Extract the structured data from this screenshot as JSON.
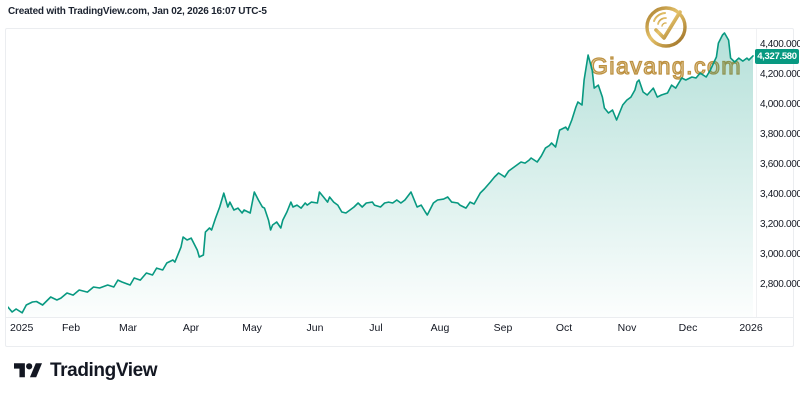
{
  "attribution": "Created with TradingView.com, Jan 02, 2026 16:07 UTC-5",
  "watermark": {
    "name": "Giavang.com",
    "gold_color": "#bd9140"
  },
  "brand": {
    "name": "TradingView"
  },
  "price_axis": {
    "ticks": [
      "4,400.000",
      "4,200.000",
      "4,000.000",
      "3,800.000",
      "3,600.000",
      "3,400.000",
      "3,200.000",
      "3,000.000",
      "2,800.000"
    ],
    "last_value": "4,327.580",
    "last_value_color": "#089981"
  },
  "time_axis": {
    "labels": [
      {
        "label": "2025",
        "date": "2025-01-01"
      },
      {
        "label": "Feb",
        "date": "2025-02-01"
      },
      {
        "label": "Mar",
        "date": "2025-03-01"
      },
      {
        "label": "Apr",
        "date": "2025-04-01"
      },
      {
        "label": "May",
        "date": "2025-05-01"
      },
      {
        "label": "Jun",
        "date": "2025-06-01"
      },
      {
        "label": "Jul",
        "date": "2025-07-01"
      },
      {
        "label": "Aug",
        "date": "2025-08-01"
      },
      {
        "label": "Sep",
        "date": "2025-09-01"
      },
      {
        "label": "Oct",
        "date": "2025-10-01"
      },
      {
        "label": "Nov",
        "date": "2025-11-01"
      },
      {
        "label": "Dec",
        "date": "2025-12-01"
      },
      {
        "label": "2026",
        "date": "2026-01-01"
      }
    ]
  },
  "chart_data": {
    "type": "area",
    "line_color": "#089981",
    "fill_color_top": "rgba(8,153,129,0.30)",
    "fill_color_bottom": "rgba(8,153,129,0.01)",
    "grid": false,
    "legend_position": "none",
    "x_range": [
      "2025-01-01",
      "2026-01-02"
    ],
    "ylim": [
      2587,
      4500
    ],
    "y_tick_values": [
      4400,
      4200,
      4000,
      3800,
      3600,
      3400,
      3200,
      3000,
      2800
    ],
    "last_value": 4327.58,
    "series": [
      {
        "name": "price",
        "points": [
          [
            "2025-01-01",
            2653
          ],
          [
            "2025-01-03",
            2620
          ],
          [
            "2025-01-05",
            2640
          ],
          [
            "2025-01-08",
            2615
          ],
          [
            "2025-01-10",
            2667
          ],
          [
            "2025-01-13",
            2687
          ],
          [
            "2025-01-15",
            2690
          ],
          [
            "2025-01-18",
            2667
          ],
          [
            "2025-01-22",
            2720
          ],
          [
            "2025-01-25",
            2700
          ],
          [
            "2025-01-27",
            2713
          ],
          [
            "2025-01-30",
            2747
          ],
          [
            "2025-02-02",
            2733
          ],
          [
            "2025-02-05",
            2767
          ],
          [
            "2025-02-09",
            2753
          ],
          [
            "2025-02-12",
            2787
          ],
          [
            "2025-02-15",
            2780
          ],
          [
            "2025-02-19",
            2800
          ],
          [
            "2025-02-22",
            2787
          ],
          [
            "2025-02-24",
            2833
          ],
          [
            "2025-02-26",
            2820
          ],
          [
            "2025-03-02",
            2800
          ],
          [
            "2025-03-04",
            2847
          ],
          [
            "2025-03-07",
            2833
          ],
          [
            "2025-03-10",
            2880
          ],
          [
            "2025-03-13",
            2867
          ],
          [
            "2025-03-15",
            2913
          ],
          [
            "2025-03-18",
            2900
          ],
          [
            "2025-03-20",
            2947
          ],
          [
            "2025-03-23",
            2967
          ],
          [
            "2025-03-24",
            2953
          ],
          [
            "2025-03-27",
            3053
          ],
          [
            "2025-03-28",
            3120
          ],
          [
            "2025-03-30",
            3100
          ],
          [
            "2025-04-01",
            3113
          ],
          [
            "2025-04-04",
            3033
          ],
          [
            "2025-04-05",
            2987
          ],
          [
            "2025-04-07",
            3000
          ],
          [
            "2025-04-08",
            3153
          ],
          [
            "2025-04-10",
            3180
          ],
          [
            "2025-04-11",
            3167
          ],
          [
            "2025-04-13",
            3247
          ],
          [
            "2025-04-15",
            3320
          ],
          [
            "2025-04-17",
            3413
          ],
          [
            "2025-04-19",
            3320
          ],
          [
            "2025-04-20",
            3353
          ],
          [
            "2025-04-22",
            3300
          ],
          [
            "2025-04-24",
            3313
          ],
          [
            "2025-04-26",
            3280
          ],
          [
            "2025-04-27",
            3300
          ],
          [
            "2025-04-30",
            3280
          ],
          [
            "2025-05-02",
            3420
          ],
          [
            "2025-05-04",
            3367
          ],
          [
            "2025-05-06",
            3320
          ],
          [
            "2025-05-07",
            3313
          ],
          [
            "2025-05-09",
            3233
          ],
          [
            "2025-05-10",
            3167
          ],
          [
            "2025-05-11",
            3200
          ],
          [
            "2025-05-13",
            3220
          ],
          [
            "2025-05-15",
            3180
          ],
          [
            "2025-05-16",
            3233
          ],
          [
            "2025-05-18",
            3287
          ],
          [
            "2025-05-20",
            3353
          ],
          [
            "2025-05-21",
            3320
          ],
          [
            "2025-05-23",
            3333
          ],
          [
            "2025-05-25",
            3313
          ],
          [
            "2025-05-27",
            3347
          ],
          [
            "2025-05-28",
            3333
          ],
          [
            "2025-05-30",
            3353
          ],
          [
            "2025-06-02",
            3347
          ],
          [
            "2025-06-03",
            3420
          ],
          [
            "2025-06-05",
            3387
          ],
          [
            "2025-06-07",
            3353
          ],
          [
            "2025-06-08",
            3387
          ],
          [
            "2025-06-10",
            3353
          ],
          [
            "2025-06-12",
            3333
          ],
          [
            "2025-06-14",
            3287
          ],
          [
            "2025-06-16",
            3280
          ],
          [
            "2025-06-18",
            3300
          ],
          [
            "2025-06-20",
            3320
          ],
          [
            "2025-06-22",
            3347
          ],
          [
            "2025-06-24",
            3320
          ],
          [
            "2025-06-26",
            3347
          ],
          [
            "2025-06-29",
            3353
          ],
          [
            "2025-06-30",
            3333
          ],
          [
            "2025-07-03",
            3320
          ],
          [
            "2025-07-05",
            3347
          ],
          [
            "2025-07-07",
            3353
          ],
          [
            "2025-07-09",
            3347
          ],
          [
            "2025-07-11",
            3367
          ],
          [
            "2025-07-13",
            3347
          ],
          [
            "2025-07-15",
            3367
          ],
          [
            "2025-07-18",
            3420
          ],
          [
            "2025-07-20",
            3353
          ],
          [
            "2025-07-21",
            3320
          ],
          [
            "2025-07-23",
            3333
          ],
          [
            "2025-07-25",
            3287
          ],
          [
            "2025-07-26",
            3267
          ],
          [
            "2025-07-29",
            3347
          ],
          [
            "2025-07-31",
            3367
          ],
          [
            "2025-08-03",
            3373
          ],
          [
            "2025-08-05",
            3387
          ],
          [
            "2025-08-07",
            3353
          ],
          [
            "2025-08-10",
            3347
          ],
          [
            "2025-08-11",
            3333
          ],
          [
            "2025-08-14",
            3313
          ],
          [
            "2025-08-16",
            3353
          ],
          [
            "2025-08-18",
            3340
          ],
          [
            "2025-08-21",
            3413
          ],
          [
            "2025-08-23",
            3440
          ],
          [
            "2025-08-26",
            3487
          ],
          [
            "2025-08-28",
            3520
          ],
          [
            "2025-08-30",
            3547
          ],
          [
            "2025-09-01",
            3530
          ],
          [
            "2025-09-02",
            3520
          ],
          [
            "2025-09-04",
            3560
          ],
          [
            "2025-09-06",
            3580
          ],
          [
            "2025-09-08",
            3600
          ],
          [
            "2025-09-10",
            3620
          ],
          [
            "2025-09-12",
            3613
          ],
          [
            "2025-09-14",
            3633
          ],
          [
            "2025-09-15",
            3647
          ],
          [
            "2025-09-18",
            3620
          ],
          [
            "2025-09-20",
            3660
          ],
          [
            "2025-09-22",
            3713
          ],
          [
            "2025-09-24",
            3730
          ],
          [
            "2025-09-25",
            3747
          ],
          [
            "2025-09-27",
            3720
          ],
          [
            "2025-09-29",
            3833
          ],
          [
            "2025-10-02",
            3853
          ],
          [
            "2025-10-03",
            3833
          ],
          [
            "2025-10-05",
            3900
          ],
          [
            "2025-10-07",
            3987
          ],
          [
            "2025-10-08",
            4020
          ],
          [
            "2025-10-10",
            4000
          ],
          [
            "2025-10-11",
            4167
          ],
          [
            "2025-10-13",
            4333
          ],
          [
            "2025-10-15",
            4233
          ],
          [
            "2025-10-16",
            4113
          ],
          [
            "2025-10-18",
            4133
          ],
          [
            "2025-10-20",
            4053
          ],
          [
            "2025-10-21",
            3980
          ],
          [
            "2025-10-23",
            3947
          ],
          [
            "2025-10-25",
            3967
          ],
          [
            "2025-10-27",
            3900
          ],
          [
            "2025-10-30",
            4000
          ],
          [
            "2025-11-01",
            4033
          ],
          [
            "2025-11-03",
            4053
          ],
          [
            "2025-11-05",
            4100
          ],
          [
            "2025-11-06",
            4153
          ],
          [
            "2025-11-07",
            4167
          ],
          [
            "2025-11-09",
            4087
          ],
          [
            "2025-11-11",
            4067
          ],
          [
            "2025-11-14",
            4113
          ],
          [
            "2025-11-16",
            4053
          ],
          [
            "2025-11-18",
            4067
          ],
          [
            "2025-11-21",
            4080
          ],
          [
            "2025-11-23",
            4133
          ],
          [
            "2025-11-25",
            4113
          ],
          [
            "2025-11-28",
            4180
          ],
          [
            "2025-11-30",
            4167
          ],
          [
            "2025-12-03",
            4187
          ],
          [
            "2025-12-05",
            4180
          ],
          [
            "2025-12-07",
            4213
          ],
          [
            "2025-12-10",
            4187
          ],
          [
            "2025-12-12",
            4233
          ],
          [
            "2025-12-15",
            4320
          ],
          [
            "2025-12-16",
            4413
          ],
          [
            "2025-12-18",
            4467
          ],
          [
            "2025-12-19",
            4480
          ],
          [
            "2025-12-21",
            4433
          ],
          [
            "2025-12-22",
            4313
          ],
          [
            "2025-12-24",
            4287
          ],
          [
            "2025-12-26",
            4313
          ],
          [
            "2025-12-28",
            4293
          ],
          [
            "2025-12-30",
            4313
          ],
          [
            "2025-12-31",
            4300
          ],
          [
            "2026-01-02",
            4327.58
          ]
        ]
      }
    ]
  }
}
